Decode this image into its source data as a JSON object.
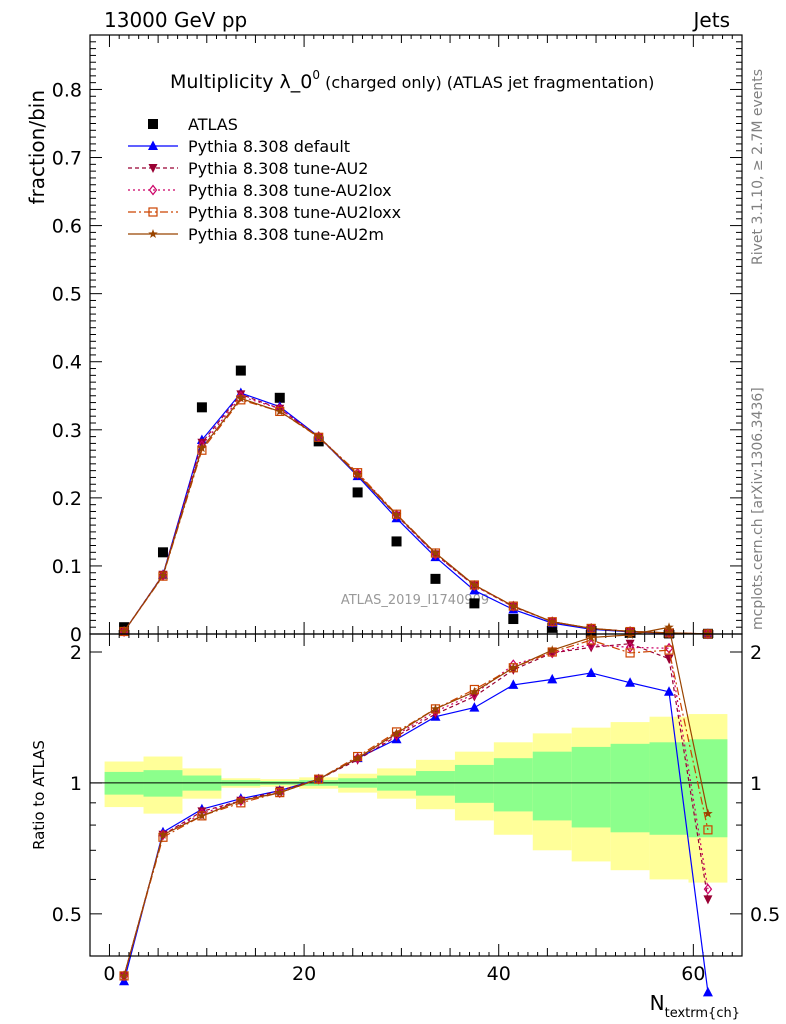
{
  "header": {
    "left": "13000 GeV pp",
    "right": "Jets",
    "side_top": "Rivet 3.1.10, ≥ 2.7M events",
    "side_bottom": "mcplots.cern.ch [arXiv:1306.3436]",
    "watermark": "ATLAS_2019_I1740909"
  },
  "chart_data": [
    {
      "type": "line",
      "panel": "main",
      "title": "Multiplicity λ_0⁰ (charged only) (ATLAS jet fragmentation)",
      "title_main": "Multiplicity λ_0",
      "title_sup": "0",
      "title_rest": " (charged only) (ATLAS jet fragmentation)",
      "ylabel": "fraction/bin",
      "xlabel": "N_textrm{ch}",
      "xlabel_main": "N",
      "xlabel_sub": "textrm{ch}",
      "xlim": [
        -2,
        65
      ],
      "ylim": [
        0,
        0.88
      ],
      "xticks": [
        0,
        20,
        40,
        60
      ],
      "yticks": [
        0,
        0.1,
        0.2,
        0.3,
        0.4,
        0.5,
        0.6,
        0.7,
        0.8
      ],
      "ytick_labels": [
        "0",
        "0.1",
        "0.2",
        "0.3",
        "0.4",
        "0.5",
        "0.6",
        "0.7",
        "0.8"
      ],
      "legend_position": "top-left",
      "x": [
        1.5,
        5.5,
        9.5,
        13.5,
        17.5,
        21.5,
        25.5,
        29.5,
        33.5,
        37.5,
        41.5,
        45.5,
        49.5,
        53.5,
        57.5,
        61.5
      ],
      "series": [
        {
          "name": "ATLAS",
          "color": "#000000",
          "marker": "square",
          "values": [
            0.01,
            0.12,
            0.333,
            0.387,
            0.347,
            0.283,
            0.208,
            0.136,
            0.081,
            0.045,
            0.022,
            0.009,
            0.004,
            0.0018,
            0.0008,
            0.0003
          ]
        },
        {
          "name": "Pythia 8.308 default",
          "color": "#0000ff",
          "marker": "triangle",
          "dash": "",
          "values": [
            0.0035,
            0.087,
            0.285,
            0.354,
            0.334,
            0.29,
            0.232,
            0.17,
            0.113,
            0.064,
            0.036,
            0.016,
            0.007,
            0.003,
            0.0013,
            0.0001
          ]
        },
        {
          "name": "Pythia 8.308 tune-AU2",
          "color": "#990033",
          "marker": "triangle-down",
          "dash": "4,3",
          "values": [
            0.0038,
            0.087,
            0.281,
            0.352,
            0.331,
            0.289,
            0.234,
            0.174,
            0.117,
            0.071,
            0.04,
            0.018,
            0.0082,
            0.0037,
            0.0016,
            0.0002
          ]
        },
        {
          "name": "Pythia 8.308 tune-AU2lox",
          "color": "#cc0066",
          "marker": "diamond",
          "dash": "2,3",
          "values": [
            0.0036,
            0.086,
            0.277,
            0.349,
            0.331,
            0.29,
            0.236,
            0.175,
            0.117,
            0.071,
            0.041,
            0.018,
            0.0082,
            0.0037,
            0.0016,
            0.0002
          ]
        },
        {
          "name": "Pythia 8.308 tune-AU2loxx",
          "color": "#cc4400",
          "marker": "square-open",
          "dash": "8,3,2,3",
          "values": [
            0.0037,
            0.085,
            0.27,
            0.344,
            0.327,
            0.289,
            0.237,
            0.176,
            0.119,
            0.072,
            0.041,
            0.018,
            0.0082,
            0.0036,
            0.0016,
            0.0002
          ]
        },
        {
          "name": "Pythia 8.308 tune-AU2m",
          "color": "#994400",
          "marker": "star",
          "dash": "",
          "values": [
            0.0037,
            0.086,
            0.273,
            0.346,
            0.327,
            0.29,
            0.234,
            0.175,
            0.119,
            0.072,
            0.041,
            0.018,
            0.0083,
            0.0037,
            0.0017,
            0.0003
          ]
        }
      ]
    },
    {
      "type": "line",
      "panel": "ratio",
      "ylabel": "Ratio to ATLAS",
      "xlim": [
        -2,
        65
      ],
      "ylim": [
        0.4,
        2.2
      ],
      "yticks": [
        0.5,
        1,
        2
      ],
      "ytick_labels": [
        "0.5",
        "1",
        "2"
      ],
      "x": [
        1.5,
        5.5,
        9.5,
        13.5,
        17.5,
        21.5,
        25.5,
        29.5,
        33.5,
        37.5,
        41.5,
        45.5,
        49.5,
        53.5,
        57.5,
        61.5
      ],
      "band_inner": [
        [
          0.94,
          1.06
        ],
        [
          0.93,
          1.07
        ],
        [
          0.96,
          1.04
        ],
        [
          0.985,
          1.015
        ],
        [
          0.99,
          1.01
        ],
        [
          0.985,
          1.015
        ],
        [
          0.975,
          1.025
        ],
        [
          0.96,
          1.04
        ],
        [
          0.935,
          1.065
        ],
        [
          0.9,
          1.1
        ],
        [
          0.86,
          1.14
        ],
        [
          0.82,
          1.18
        ],
        [
          0.79,
          1.21
        ],
        [
          0.77,
          1.23
        ],
        [
          0.76,
          1.24
        ],
        [
          0.75,
          1.26
        ]
      ],
      "band_outer": [
        [
          0.88,
          1.12
        ],
        [
          0.85,
          1.15
        ],
        [
          0.92,
          1.08
        ],
        [
          0.975,
          1.025
        ],
        [
          0.98,
          1.02
        ],
        [
          0.97,
          1.03
        ],
        [
          0.95,
          1.05
        ],
        [
          0.92,
          1.08
        ],
        [
          0.87,
          1.13
        ],
        [
          0.82,
          1.18
        ],
        [
          0.76,
          1.24
        ],
        [
          0.7,
          1.3
        ],
        [
          0.66,
          1.34
        ],
        [
          0.63,
          1.38
        ],
        [
          0.6,
          1.42
        ],
        [
          0.59,
          1.44
        ]
      ],
      "band_colors": {
        "inner": "#8cff8c",
        "outer": "#ffff99"
      },
      "series": [
        {
          "name": "Pythia 8.308 default",
          "color": "#0000ff",
          "marker": "triangle",
          "dash": "",
          "values": [
            0.35,
            0.77,
            0.87,
            0.92,
            0.96,
            1.02,
            1.14,
            1.26,
            1.42,
            1.49,
            1.68,
            1.73,
            1.79,
            1.7,
            1.62,
            0.33
          ]
        },
        {
          "name": "Pythia 8.308 tune-AU2",
          "color": "#990033",
          "marker": "triangle-down",
          "dash": "4,3",
          "values": [
            0.36,
            0.76,
            0.86,
            0.91,
            0.96,
            1.02,
            1.13,
            1.28,
            1.44,
            1.58,
            1.82,
            1.99,
            2.05,
            2.09,
            1.93,
            0.54
          ]
        },
        {
          "name": "Pythia 8.308 tune-AU2lox",
          "color": "#cc0066",
          "marker": "diamond",
          "dash": "2,3",
          "values": [
            0.36,
            0.76,
            0.85,
            0.91,
            0.95,
            1.02,
            1.14,
            1.29,
            1.46,
            1.6,
            1.87,
            1.99,
            2.08,
            2.05,
            2.04,
            0.57
          ]
        },
        {
          "name": "Pythia 8.308 tune-AU2loxx",
          "color": "#cc4400",
          "marker": "square-open",
          "dash": "8,3,2,3",
          "values": [
            0.36,
            0.75,
            0.84,
            0.9,
            0.95,
            1.02,
            1.15,
            1.31,
            1.48,
            1.64,
            1.84,
            2.0,
            2.13,
            1.99,
            2.02,
            0.78
          ]
        },
        {
          "name": "Pythia 8.308 tune-AU2m",
          "color": "#994400",
          "marker": "star",
          "dash": "",
          "values": [
            0.36,
            0.76,
            0.84,
            0.91,
            0.95,
            1.02,
            1.14,
            1.3,
            1.48,
            1.62,
            1.84,
            2.02,
            2.16,
            2.19,
            2.28,
            0.85
          ]
        }
      ]
    }
  ]
}
